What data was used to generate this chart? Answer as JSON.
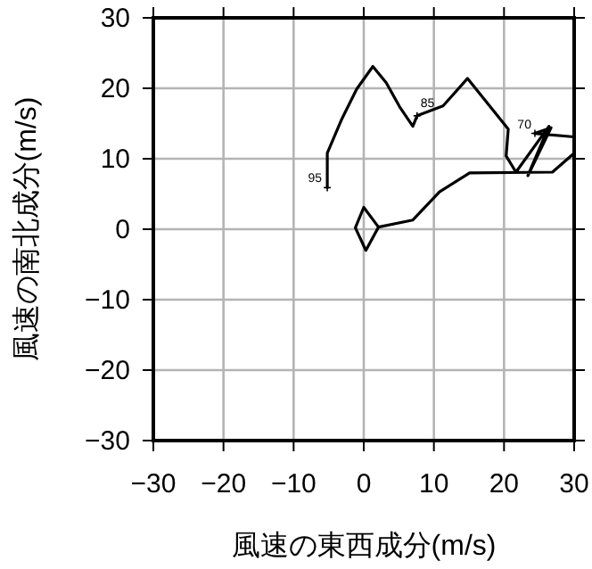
{
  "chart_data": {
    "type": "line",
    "xlabel": "風速の東西成分(m/s)",
    "ylabel": "風速の南北成分(m/s)",
    "xlim": [
      -30,
      30
    ],
    "ylim": [
      -30,
      30
    ],
    "xticks": [
      -30,
      -20,
      -10,
      0,
      10,
      20,
      30
    ],
    "yticks": [
      -30,
      -20,
      -10,
      0,
      10,
      20,
      30
    ],
    "grid": true,
    "series": [
      {
        "color": "#000000",
        "x": [
          -5.2,
          -5.2,
          -3.1,
          -1.0,
          1.3,
          3.2,
          5.1,
          7.0,
          7.6,
          11.3,
          14.8,
          20.6,
          20.3,
          21.7,
          26.4,
          23.4,
          26.7,
          24.4,
          30,
          30,
          26.9,
          15.1,
          10.8,
          7.0,
          2.1,
          0.3,
          -1.2,
          0,
          2.1
        ],
        "values": [
          5.9,
          10.8,
          15.7,
          19.9,
          23.1,
          20.8,
          17.4,
          14.6,
          16.1,
          17.5,
          21.4,
          14.2,
          10.4,
          8.1,
          14.6,
          7.6,
          14.4,
          13.6,
          13.1,
          10.8,
          8.1,
          8.0,
          5.3,
          1.3,
          0.3,
          -3.0,
          0.2,
          3.1,
          0.3
        ]
      }
    ],
    "annotations": [
      {
        "text": "95",
        "x": -5.2,
        "y": 5.9
      },
      {
        "text": "85",
        "x": 7.6,
        "y": 16.1
      },
      {
        "text": "70",
        "x": 24.4,
        "y": 13.6
      }
    ]
  }
}
